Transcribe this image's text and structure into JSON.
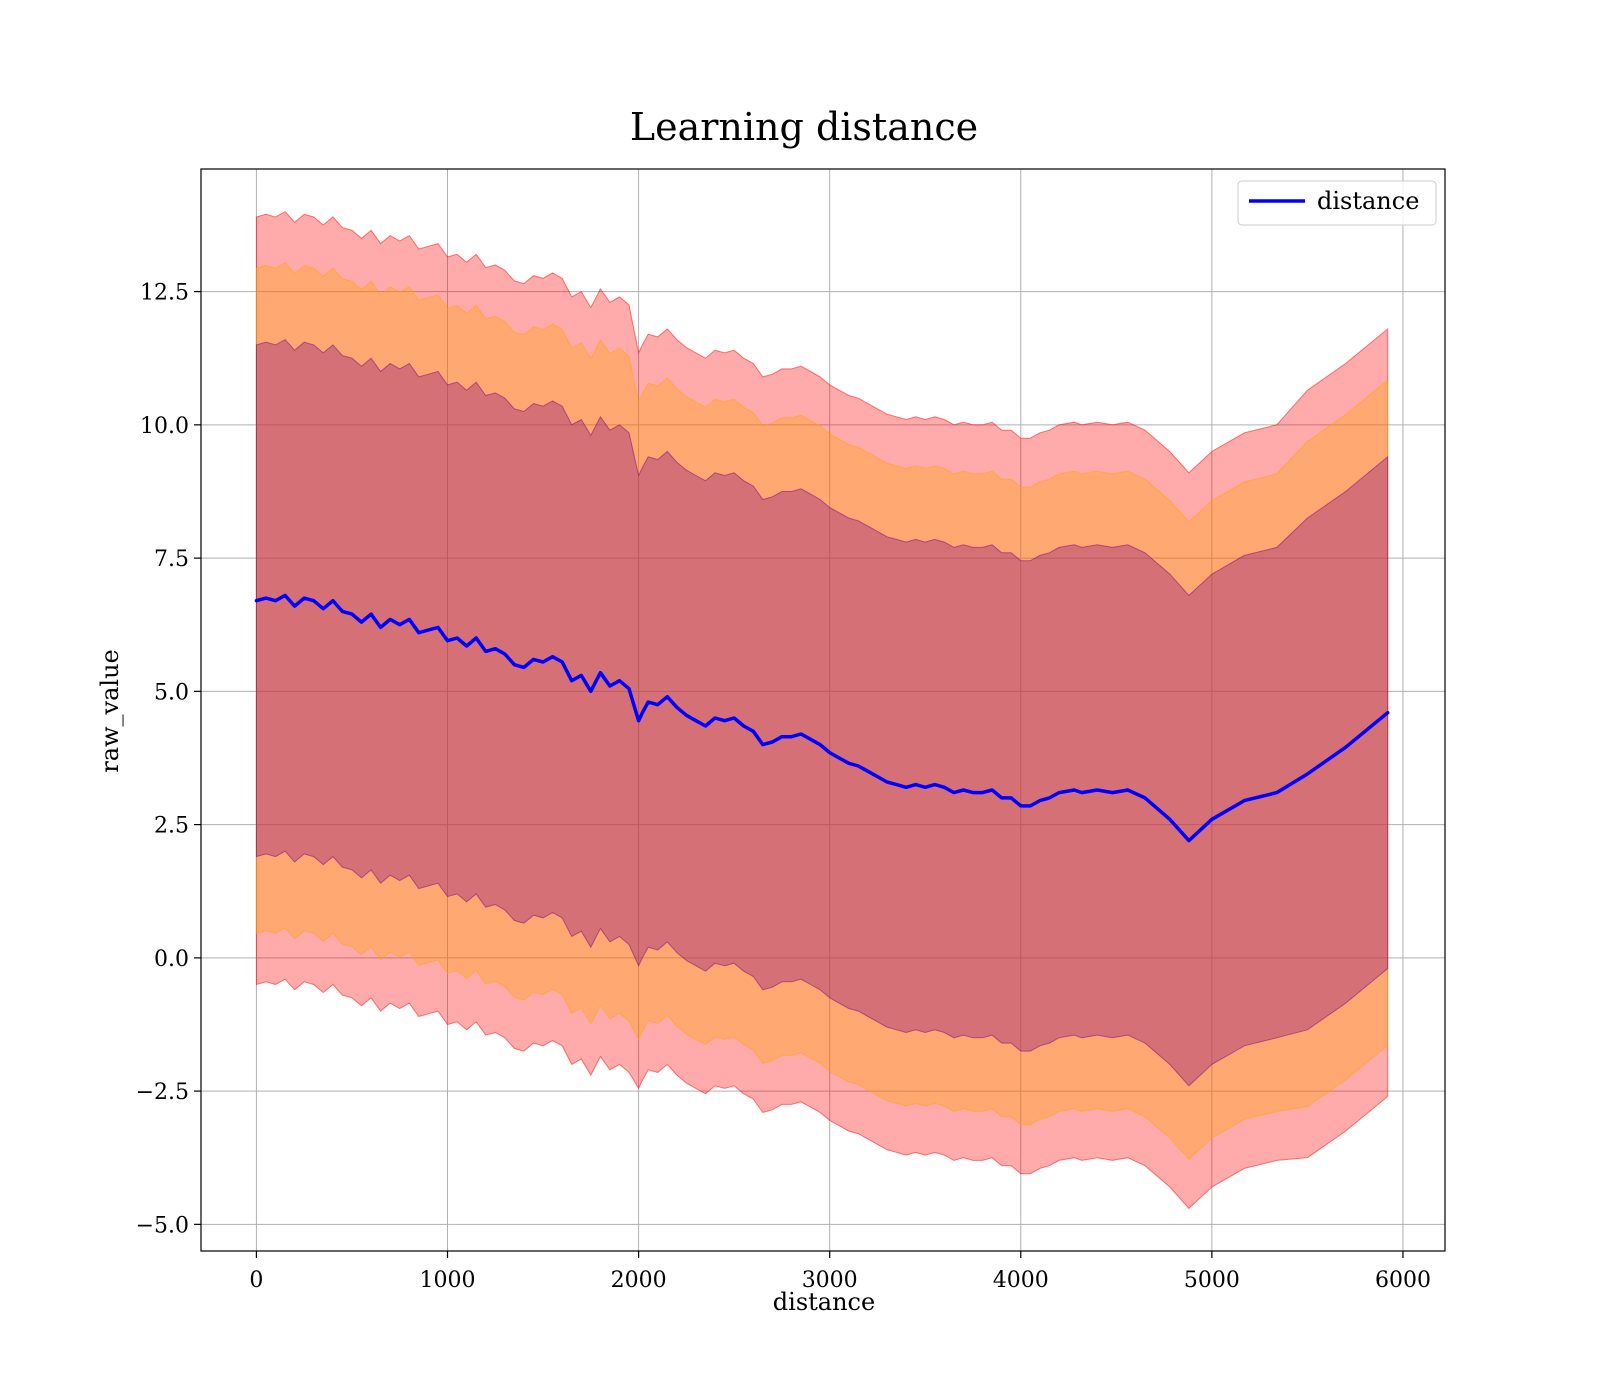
{
  "chart_data": {
    "type": "line",
    "title": "Learning distance",
    "xlabel": "distance",
    "ylabel": "raw_value",
    "xlim": [
      -290,
      6220
    ],
    "ylim": [
      -5.5,
      14.8
    ],
    "x_ticks": [
      0,
      1000,
      2000,
      3000,
      4000,
      5000,
      6000
    ],
    "x_tick_labels": [
      "0",
      "1000",
      "2000",
      "3000",
      "4000",
      "5000",
      "6000"
    ],
    "y_ticks": [
      -5.0,
      -2.5,
      0.0,
      2.5,
      5.0,
      7.5,
      10.0,
      12.5
    ],
    "y_tick_labels": [
      "−5.0",
      "−2.5",
      "0.0",
      "2.5",
      "5.0",
      "7.5",
      "10.0",
      "12.5"
    ],
    "grid": true,
    "legend": {
      "position": "top-right",
      "entries": [
        "distance"
      ]
    },
    "colors": {
      "line": "#0000ff",
      "band_outer": "#ff0000",
      "band_middle": "#ffa500",
      "band_inner": "#800080",
      "grid": "#b0b0b0"
    },
    "bands": [
      {
        "level": "outer (mean ± 3 std)",
        "std_multiplier": 3,
        "color": "#ff0000",
        "opacity": 0.33
      },
      {
        "level": "middle (mean ± 2.6 std)",
        "std_multiplier": 2.6,
        "color": "#ffa500",
        "opacity": 0.33
      },
      {
        "level": "inner (mean ± 2 std)",
        "std_multiplier": 2,
        "color": "#800080",
        "opacity": 0.33
      }
    ],
    "series": [
      {
        "name": "distance",
        "x": [
          0,
          50,
          100,
          150,
          200,
          250,
          300,
          350,
          400,
          450,
          500,
          550,
          600,
          650,
          700,
          750,
          800,
          850,
          900,
          950,
          1000,
          1050,
          1100,
          1150,
          1200,
          1250,
          1300,
          1350,
          1400,
          1450,
          1500,
          1550,
          1600,
          1650,
          1700,
          1750,
          1800,
          1850,
          1900,
          1950,
          2000,
          2020,
          2050,
          2100,
          2150,
          2200,
          2250,
          2300,
          2350,
          2400,
          2450,
          2500,
          2550,
          2600,
          2650,
          2700,
          2750,
          2800,
          2850,
          2900,
          2950,
          3000,
          3050,
          3100,
          3150,
          3200,
          3250,
          3300,
          3350,
          3400,
          3450,
          3500,
          3550,
          3600,
          3650,
          3700,
          3750,
          3800,
          3850,
          3900,
          3950,
          4000,
          4050,
          4100,
          4150,
          4200,
          4280,
          4320,
          4400,
          4480,
          4560,
          4650,
          4780,
          4880,
          5000,
          5170,
          5340,
          5500,
          5700,
          5920
        ],
        "mean": [
          6.7,
          6.75,
          6.7,
          6.8,
          6.6,
          6.75,
          6.7,
          6.55,
          6.7,
          6.5,
          6.45,
          6.3,
          6.45,
          6.2,
          6.35,
          6.25,
          6.35,
          6.1,
          6.15,
          6.2,
          5.95,
          6.0,
          5.85,
          6.0,
          5.75,
          5.8,
          5.7,
          5.5,
          5.45,
          5.6,
          5.55,
          5.65,
          5.55,
          5.2,
          5.3,
          5.0,
          5.35,
          5.1,
          5.2,
          5.05,
          4.45,
          4.6,
          4.8,
          4.75,
          4.9,
          4.7,
          4.55,
          4.45,
          4.35,
          4.5,
          4.45,
          4.5,
          4.35,
          4.25,
          4.0,
          4.05,
          4.15,
          4.15,
          4.2,
          4.1,
          4.0,
          3.85,
          3.75,
          3.65,
          3.6,
          3.5,
          3.4,
          3.3,
          3.25,
          3.2,
          3.25,
          3.2,
          3.25,
          3.2,
          3.1,
          3.15,
          3.1,
          3.1,
          3.15,
          3.0,
          3.0,
          2.85,
          2.85,
          2.95,
          3.0,
          3.1,
          3.15,
          3.1,
          3.15,
          3.1,
          3.15,
          3.0,
          2.6,
          2.2,
          2.6,
          2.95,
          3.1,
          3.45,
          3.95,
          4.6
        ],
        "std": [
          2.4,
          2.4,
          2.4,
          2.4,
          2.4,
          2.4,
          2.4,
          2.4,
          2.4,
          2.4,
          2.4,
          2.4,
          2.4,
          2.4,
          2.4,
          2.4,
          2.4,
          2.4,
          2.4,
          2.4,
          2.4,
          2.4,
          2.4,
          2.4,
          2.4,
          2.4,
          2.4,
          2.4,
          2.4,
          2.4,
          2.4,
          2.4,
          2.4,
          2.4,
          2.4,
          2.4,
          2.4,
          2.4,
          2.4,
          2.4,
          2.3,
          2.3,
          2.3,
          2.3,
          2.3,
          2.3,
          2.3,
          2.3,
          2.3,
          2.3,
          2.3,
          2.3,
          2.3,
          2.3,
          2.3,
          2.3,
          2.3,
          2.3,
          2.3,
          2.3,
          2.3,
          2.3,
          2.3,
          2.3,
          2.3,
          2.3,
          2.3,
          2.3,
          2.3,
          2.3,
          2.3,
          2.3,
          2.3,
          2.3,
          2.3,
          2.3,
          2.3,
          2.3,
          2.3,
          2.3,
          2.3,
          2.3,
          2.3,
          2.3,
          2.3,
          2.3,
          2.3,
          2.3,
          2.3,
          2.3,
          2.3,
          2.3,
          2.3,
          2.3,
          2.3,
          2.3,
          2.3,
          2.4,
          2.4,
          2.4
        ]
      }
    ]
  }
}
